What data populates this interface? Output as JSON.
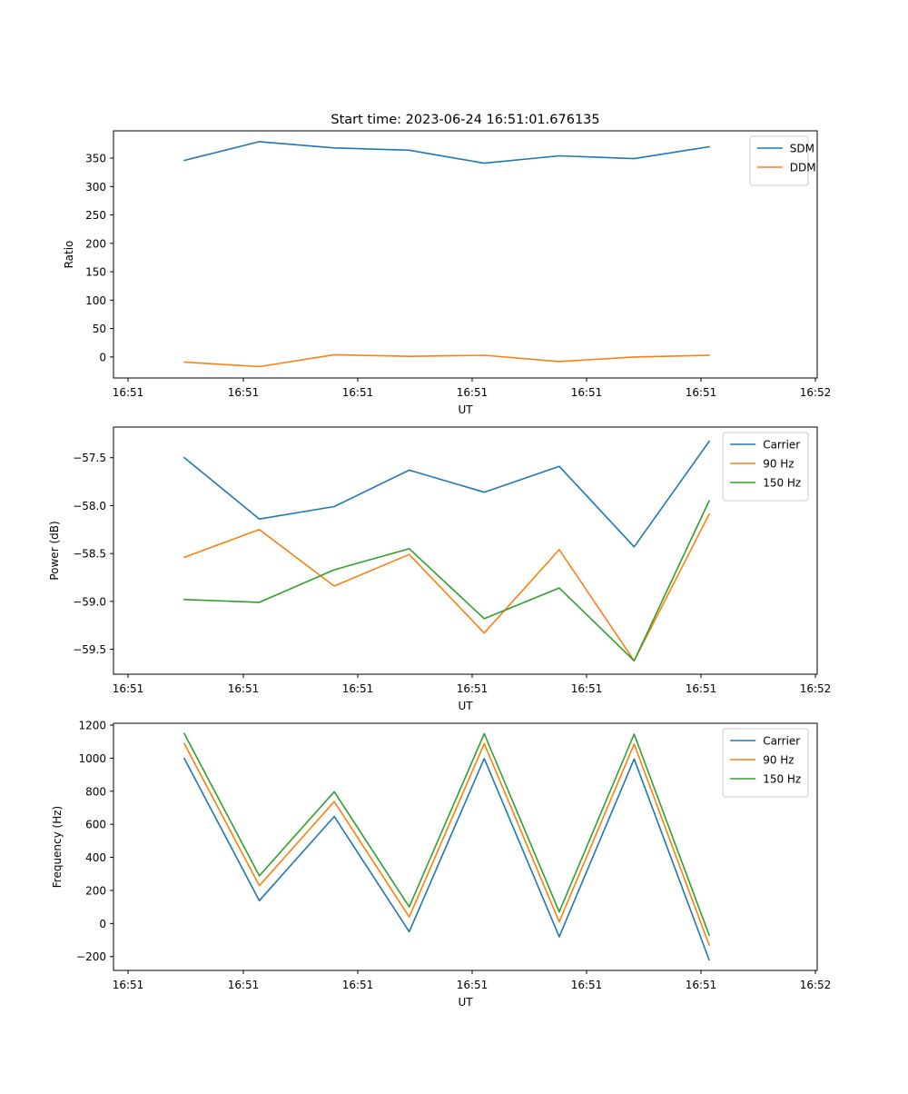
{
  "chart_data": [
    {
      "type": "line",
      "title": "Start time: 2023-06-24 16:51:01.676135",
      "xlabel": "UT",
      "ylabel": "Ratio",
      "x_tick_labels": [
        "16:51",
        "16:51",
        "16:51",
        "16:51",
        "16:51",
        "16:51",
        "16:52"
      ],
      "y_ticks": [
        0,
        50,
        100,
        150,
        200,
        250,
        300,
        350
      ],
      "ylim": [
        -37,
        398
      ],
      "x": [
        1,
        2,
        3,
        4,
        5,
        6,
        7,
        8
      ],
      "series": [
        {
          "name": "SDM",
          "color": "#1f77b4",
          "values": [
            346,
            379,
            368,
            364,
            341,
            354,
            349,
            370
          ]
        },
        {
          "name": "DDM",
          "color": "#ff7f0e",
          "values": [
            -9,
            -17,
            4,
            1,
            3,
            -8,
            0,
            3
          ]
        }
      ],
      "legend": "top-right"
    },
    {
      "type": "line",
      "xlabel": "UT",
      "ylabel": "Power (dB)",
      "x_tick_labels": [
        "16:51",
        "16:51",
        "16:51",
        "16:51",
        "16:51",
        "16:51",
        "16:52"
      ],
      "y_ticks": [
        -59.5,
        -59.0,
        -58.5,
        -58.0,
        -57.5
      ],
      "y_tick_labels": [
        "−59.5",
        "−59.0",
        "−58.5",
        "−58.0",
        "−57.5"
      ],
      "ylim": [
        -59.76,
        -57.18
      ],
      "x": [
        1,
        2,
        3,
        4,
        5,
        6,
        7,
        8
      ],
      "series": [
        {
          "name": "Carrier",
          "color": "#1f77b4",
          "values": [
            -57.5,
            -58.14,
            -58.01,
            -57.63,
            -57.86,
            -57.59,
            -58.43,
            -57.33
          ]
        },
        {
          "name": "90 Hz",
          "color": "#ff7f0e",
          "values": [
            -58.54,
            -58.25,
            -58.84,
            -58.51,
            -59.33,
            -58.46,
            -59.62,
            -58.09
          ]
        },
        {
          "name": "150 Hz",
          "color": "#2ca02c",
          "values": [
            -58.98,
            -59.01,
            -58.67,
            -58.45,
            -59.18,
            -58.86,
            -59.62,
            -57.95
          ]
        }
      ],
      "legend": "top-right"
    },
    {
      "type": "line",
      "xlabel": "UT",
      "ylabel": "Frequency (Hz)",
      "x_tick_labels": [
        "16:51",
        "16:51",
        "16:51",
        "16:51",
        "16:51",
        "16:51",
        "16:52"
      ],
      "y_ticks": [
        -200,
        0,
        200,
        400,
        600,
        800,
        1000,
        1200
      ],
      "y_tick_labels": [
        "−200",
        "0",
        "200",
        "400",
        "600",
        "800",
        "1000",
        "1200"
      ],
      "ylim": [
        -284,
        1211
      ],
      "x": [
        1,
        2,
        3,
        4,
        5,
        6,
        7,
        8
      ],
      "series": [
        {
          "name": "Carrier",
          "color": "#1f77b4",
          "values": [
            998,
            138,
            647,
            -50,
            998,
            -80,
            995,
            -220
          ]
        },
        {
          "name": "90 Hz",
          "color": "#ff7f0e",
          "values": [
            1088,
            228,
            737,
            40,
            1088,
            10,
            1085,
            -130
          ]
        },
        {
          "name": "150 Hz",
          "color": "#2ca02c",
          "values": [
            1148,
            288,
            797,
            100,
            1148,
            70,
            1145,
            -70
          ]
        }
      ],
      "legend": "top-right"
    }
  ]
}
